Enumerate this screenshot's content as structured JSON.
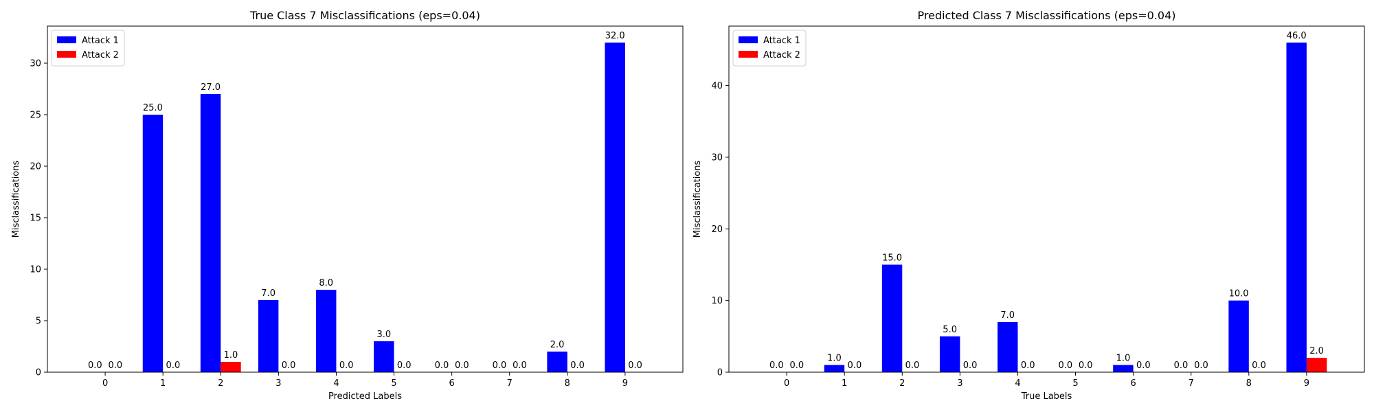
{
  "chart_data": [
    {
      "type": "bar",
      "title": "True Class 7 Misclassifications (eps=0.04)",
      "xlabel": "Predicted Labels",
      "ylabel": "Misclassifications",
      "categories": [
        "0",
        "1",
        "2",
        "3",
        "4",
        "5",
        "6",
        "7",
        "8",
        "9"
      ],
      "series": [
        {
          "name": "Attack 1",
          "color": "#0000ff",
          "values": [
            0,
            25,
            27,
            7,
            8,
            3,
            0,
            0,
            2,
            32
          ]
        },
        {
          "name": "Attack 2",
          "color": "#ff0000",
          "values": [
            0,
            0,
            1,
            0,
            0,
            0,
            0,
            0,
            0,
            0
          ]
        }
      ],
      "ylim": [
        0,
        33.6
      ],
      "yticks": [
        0,
        5,
        10,
        15,
        20,
        25,
        30
      ],
      "grid": false,
      "legend": "upper left"
    },
    {
      "type": "bar",
      "title": "Predicted Class 7 Misclassifications (eps=0.04)",
      "xlabel": "True Labels",
      "ylabel": "Misclassifications",
      "categories": [
        "0",
        "1",
        "2",
        "3",
        "4",
        "5",
        "6",
        "7",
        "8",
        "9"
      ],
      "series": [
        {
          "name": "Attack 1",
          "color": "#0000ff",
          "values": [
            0,
            1,
            15,
            5,
            7,
            0,
            1,
            0,
            10,
            46
          ]
        },
        {
          "name": "Attack 2",
          "color": "#ff0000",
          "values": [
            0,
            0,
            0,
            0,
            0,
            0,
            0,
            0,
            0,
            2
          ]
        }
      ],
      "ylim": [
        0,
        48.3
      ],
      "yticks": [
        0,
        10,
        20,
        30,
        40
      ],
      "grid": false,
      "legend": "upper left"
    }
  ]
}
